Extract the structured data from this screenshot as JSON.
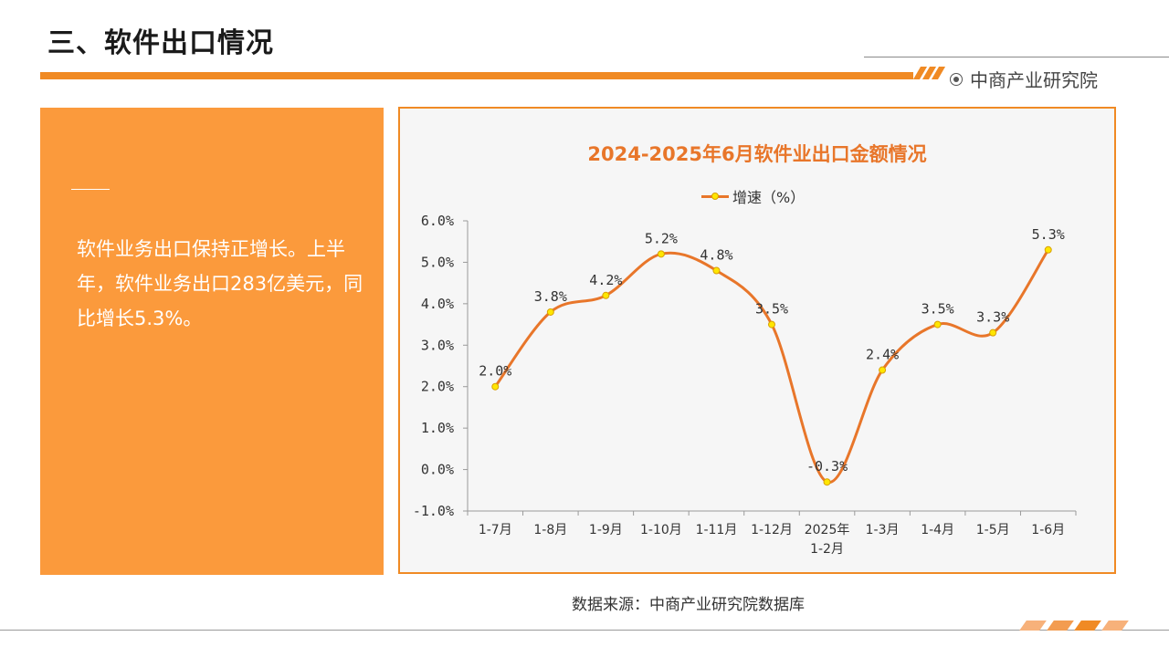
{
  "page": {
    "title": "三、软件出口情况",
    "brand": "中商产业研究院",
    "panel_text": "软件业务出口保持正增长。上半年，软件业务出口283亿美元，同比增长5.3%。",
    "source": "数据来源：中商产业研究院数据库"
  },
  "colors": {
    "accent": "#f08a24",
    "panel": "#fb9a3c",
    "line": "#e8762a",
    "marker": "#ffe600"
  },
  "chart_data": {
    "type": "line",
    "title": "2024-2025年6月软件业出口金额情况",
    "categories": [
      "1-7月",
      "1-8月",
      "1-9月",
      "1-10月",
      "1-11月",
      "1-12月",
      "2025年 1-2月",
      "1-3月",
      "1-4月",
      "1-5月",
      "1-6月"
    ],
    "series": [
      {
        "name": "增速（%）",
        "values": [
          2.0,
          3.8,
          4.2,
          5.2,
          4.8,
          3.5,
          -0.3,
          2.4,
          3.5,
          3.3,
          5.3
        ],
        "labels": [
          "2.0%",
          "3.8%",
          "4.2%",
          "5.2%",
          "4.8%",
          "3.5%",
          "-0.3%",
          "2.4%",
          "3.5%",
          "3.3%",
          "5.3%"
        ]
      }
    ],
    "yticks": [
      "6.0%",
      "5.0%",
      "4.0%",
      "3.0%",
      "2.0%",
      "1.0%",
      "0.0%",
      "-1.0%"
    ],
    "ylim": [
      -1.0,
      6.0
    ],
    "legend": "top",
    "grid": false
  }
}
